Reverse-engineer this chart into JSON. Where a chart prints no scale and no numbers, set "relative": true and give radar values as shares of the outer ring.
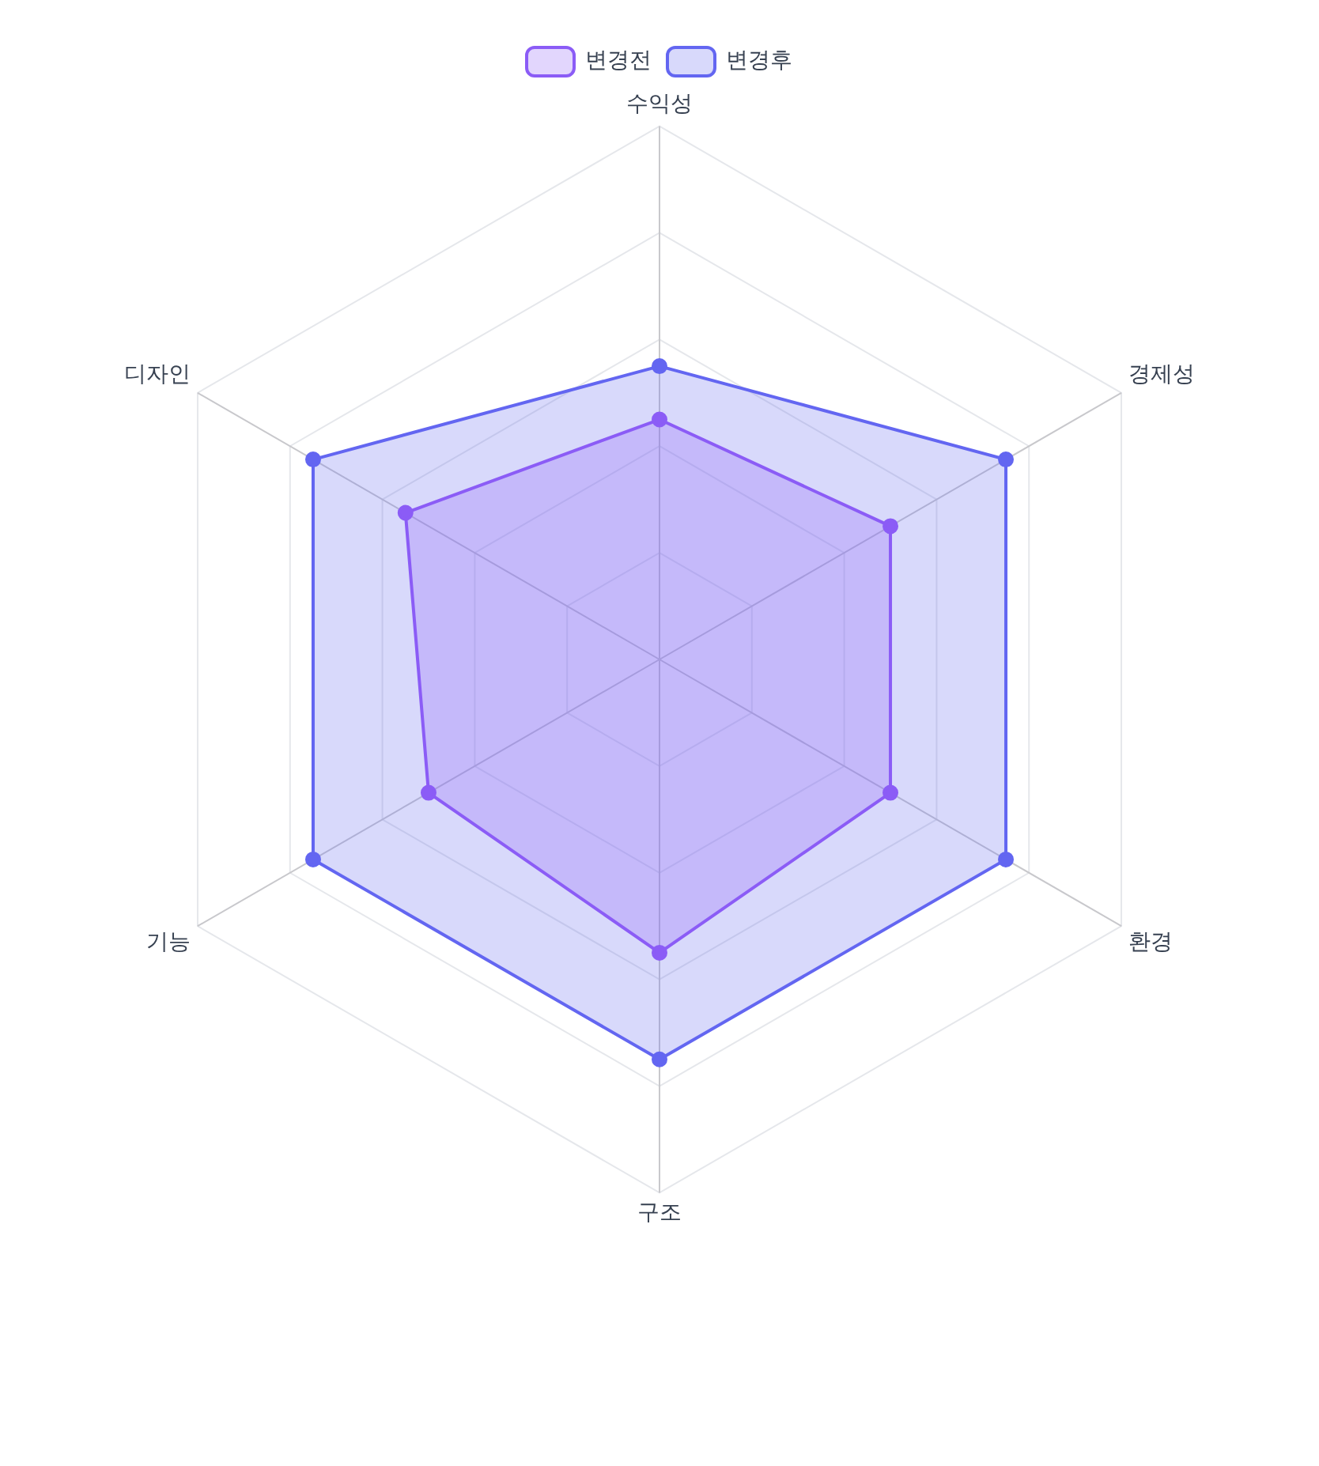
{
  "chart_data": {
    "type": "radar",
    "relative": true,
    "categories": [
      "수익성",
      "경제성",
      "환경",
      "구조",
      "기능",
      "디자인"
    ],
    "series": [
      {
        "name": "변경전",
        "color": "#8b5cf6",
        "values": [
          0.45,
          0.5,
          0.5,
          0.55,
          0.5,
          0.55
        ]
      },
      {
        "name": "변경후",
        "color": "#6366f1",
        "values": [
          0.55,
          0.75,
          0.75,
          0.75,
          0.75,
          0.75
        ]
      }
    ],
    "grid": true,
    "legend": "top",
    "marker": "circle",
    "line_style": "solid"
  }
}
